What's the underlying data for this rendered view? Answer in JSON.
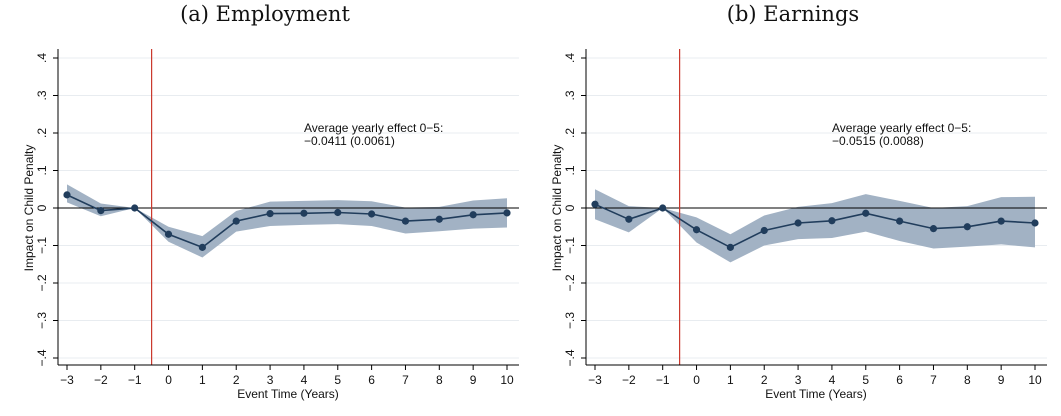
{
  "chart_data": [
    {
      "type": "line",
      "title": "(a) Employment",
      "xlabel": "Event Time (Years)",
      "ylabel": "Impact on Child Penalty",
      "x": [
        -3,
        -2,
        -1,
        0,
        1,
        2,
        3,
        4,
        5,
        6,
        7,
        8,
        9,
        10
      ],
      "x_ticks": [
        "−3",
        "−2",
        "−1",
        "0",
        "1",
        "2",
        "3",
        "4",
        "5",
        "6",
        "7",
        "8",
        "9",
        "10"
      ],
      "y_ticks": [
        ".4",
        ".3",
        ".2",
        ".1",
        "0",
        "−.1",
        "−.2",
        "−.3",
        "−.4"
      ],
      "y_tick_values": [
        0.4,
        0.3,
        0.2,
        0.1,
        0,
        -0.1,
        -0.2,
        -0.3,
        -0.4
      ],
      "ylim": [
        -0.4,
        0.4
      ],
      "xlim": [
        -3,
        10
      ],
      "series": [
        {
          "values": [
            0.035,
            -0.007,
            0.0,
            -0.07,
            -0.105,
            -0.035,
            -0.015,
            -0.014,
            -0.012,
            -0.016,
            -0.035,
            -0.03,
            -0.018,
            -0.013
          ],
          "ci_lower": [
            0.015,
            -0.022,
            0.0,
            -0.09,
            -0.132,
            -0.063,
            -0.048,
            -0.045,
            -0.043,
            -0.048,
            -0.068,
            -0.062,
            -0.055,
            -0.052
          ],
          "ci_upper": [
            0.063,
            0.012,
            0.0,
            -0.05,
            -0.075,
            -0.008,
            0.017,
            0.019,
            0.021,
            0.018,
            0.001,
            0.003,
            0.02,
            0.026
          ],
          "color": "#213d5c",
          "band_color": "#a2b2c4"
        }
      ],
      "vline_x": -0.5,
      "vline_color": "#c9372c",
      "grid": true,
      "annotation": [
        "Average yearly effect 0−5:",
        "−0.0411 (0.0061)"
      ]
    },
    {
      "type": "line",
      "title": "(b) Earnings",
      "xlabel": "Event Time (Years)",
      "ylabel": "Impact on Child Penalty",
      "x": [
        -3,
        -2,
        -1,
        0,
        1,
        2,
        3,
        4,
        5,
        6,
        7,
        8,
        9,
        10
      ],
      "x_ticks": [
        "−3",
        "−2",
        "−1",
        "0",
        "1",
        "2",
        "3",
        "4",
        "5",
        "6",
        "7",
        "8",
        "9",
        "10"
      ],
      "y_ticks": [
        ".4",
        ".3",
        ".2",
        ".1",
        "0",
        "−.1",
        "−.2",
        "−.3",
        "−.4"
      ],
      "y_tick_values": [
        0.4,
        0.3,
        0.2,
        0.1,
        0,
        -0.1,
        -0.2,
        -0.3,
        -0.4
      ],
      "ylim": [
        -0.4,
        0.4
      ],
      "xlim": [
        -3,
        10
      ],
      "series": [
        {
          "values": [
            0.01,
            -0.03,
            0.0,
            -0.058,
            -0.105,
            -0.06,
            -0.04,
            -0.034,
            -0.014,
            -0.035,
            -0.055,
            -0.05,
            -0.035,
            -0.04
          ],
          "ci_lower": [
            -0.03,
            -0.065,
            0.0,
            -0.092,
            -0.145,
            -0.1,
            -0.083,
            -0.08,
            -0.063,
            -0.088,
            -0.108,
            -0.103,
            -0.097,
            -0.105
          ],
          "ci_upper": [
            0.05,
            0.005,
            0.0,
            -0.025,
            -0.07,
            -0.02,
            0.003,
            0.013,
            0.037,
            0.019,
            0.0,
            0.005,
            0.029,
            0.03
          ],
          "color": "#213d5c",
          "band_color": "#a2b2c4"
        }
      ],
      "vline_x": -0.5,
      "vline_color": "#c9372c",
      "grid": true,
      "annotation": [
        "Average yearly effect 0−5:",
        "−0.0515 (0.0088)"
      ]
    }
  ]
}
